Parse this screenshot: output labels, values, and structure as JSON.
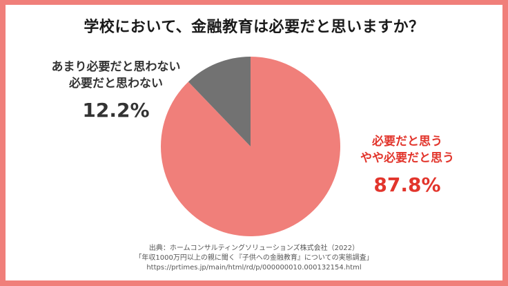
{
  "title": "学校において、金融教育は必要だと思いますか？",
  "colors": {
    "background": "#f07f7a",
    "necessary_slice": "#f07f7a",
    "not_necessary_slice": "#727272",
    "necessary_text": "#e2352c",
    "not_necessary_text": "#333333"
  },
  "chart_data": {
    "type": "pie",
    "slices": [
      {
        "label_lines": [
          "必要だと思う",
          "やや必要だと思う"
        ],
        "value": 87.8,
        "display": "87.8%"
      },
      {
        "label_lines": [
          "あまり必要だと思わない",
          "必要だと思わない"
        ],
        "value": 12.2,
        "display": "12.2%"
      }
    ]
  },
  "source": {
    "line1": "出典：ホームコンサルティングソリューションズ株式会社（2022）",
    "line2": "「年収1000万円以上の親に聞く『子供への金融教育』についての実態調査」",
    "line3": "https://prtimes.jp/main/html/rd/p/000000010.000132154.html"
  }
}
